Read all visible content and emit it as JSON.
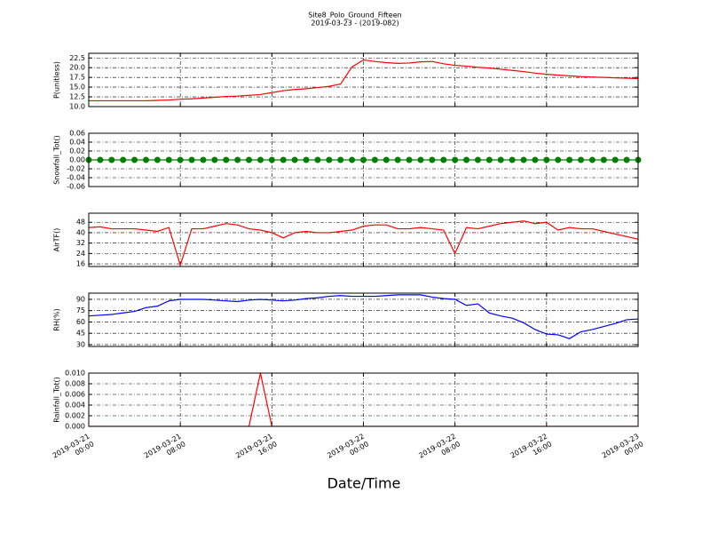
{
  "chart_data": [
    {
      "type": "line",
      "title": "Site8_Polo_Ground_Fifteen",
      "subtitle": "2019-03-23 - (2019-082)",
      "ylabel": "P(unitless)",
      "x": [
        "2019-03-21 00:00",
        "2019-03-21 01:00",
        "2019-03-21 02:00",
        "2019-03-21 03:00",
        "2019-03-21 04:00",
        "2019-03-21 05:00",
        "2019-03-21 06:00",
        "2019-03-21 07:00",
        "2019-03-21 08:00",
        "2019-03-21 09:00",
        "2019-03-21 10:00",
        "2019-03-21 11:00",
        "2019-03-21 12:00",
        "2019-03-21 13:00",
        "2019-03-21 14:00",
        "2019-03-21 15:00",
        "2019-03-21 16:00",
        "2019-03-21 17:00",
        "2019-03-21 18:00",
        "2019-03-21 19:00",
        "2019-03-21 20:00",
        "2019-03-21 21:00",
        "2019-03-21 22:00",
        "2019-03-21 23:00",
        "2019-03-22 00:00",
        "2019-03-22 01:00",
        "2019-03-22 02:00",
        "2019-03-22 03:00",
        "2019-03-22 04:00",
        "2019-03-22 05:00",
        "2019-03-22 06:00",
        "2019-03-22 07:00",
        "2019-03-22 08:00",
        "2019-03-22 09:00",
        "2019-03-22 10:00",
        "2019-03-22 11:00",
        "2019-03-22 12:00",
        "2019-03-22 13:00",
        "2019-03-22 14:00",
        "2019-03-22 15:00",
        "2019-03-22 16:00",
        "2019-03-22 17:00",
        "2019-03-22 18:00",
        "2019-03-22 19:00",
        "2019-03-22 20:00",
        "2019-03-22 21:00",
        "2019-03-22 22:00",
        "2019-03-22 23:00",
        "2019-03-23 00:00"
      ],
      "xlim": [
        "2019-03-21 00:00",
        "2019-03-23 00:00"
      ],
      "xticks": [
        "2019-03-21 00:00",
        "2019-03-21 08:00",
        "2019-03-21 16:00",
        "2019-03-22 00:00",
        "2019-03-22 08:00",
        "2019-03-22 16:00",
        "2019-03-23 00:00"
      ],
      "ylim": [
        10,
        23.7
      ],
      "yticks": [
        {
          "value": 10,
          "label": "10.0"
        },
        12.5,
        {
          "value": 15,
          "label": "15.0"
        },
        17.5,
        {
          "value": 20,
          "label": "20.0"
        },
        22.5
      ],
      "grid": true,
      "series": [
        {
          "color": "#ff0000",
          "values": [
            11.5,
            11.5,
            11.5,
            11.5,
            11.5,
            11.5,
            11.6,
            11.7,
            11.9,
            12.0,
            12.2,
            12.4,
            12.6,
            12.7,
            12.9,
            13.1,
            13.6,
            14.1,
            14.4,
            14.6,
            14.9,
            15.2,
            15.8,
            20.2,
            22.0,
            21.6,
            21.3,
            21.1,
            21.2,
            21.5,
            21.6,
            21.0,
            20.6,
            20.4,
            20.1,
            19.9,
            19.6,
            19.3,
            19.0,
            18.6,
            18.3,
            18.1,
            17.9,
            17.7,
            17.6,
            17.5,
            17.4,
            17.3,
            17.2
          ]
        }
      ]
    },
    {
      "type": "line",
      "ylabel": "Snowfall_Tot()",
      "marker": "o",
      "x": [
        "2019-03-21 00:00",
        "2019-03-21 01:00",
        "2019-03-21 02:00",
        "2019-03-21 03:00",
        "2019-03-21 04:00",
        "2019-03-21 05:00",
        "2019-03-21 06:00",
        "2019-03-21 07:00",
        "2019-03-21 08:00",
        "2019-03-21 09:00",
        "2019-03-21 10:00",
        "2019-03-21 11:00",
        "2019-03-21 12:00",
        "2019-03-21 13:00",
        "2019-03-21 14:00",
        "2019-03-21 15:00",
        "2019-03-21 16:00",
        "2019-03-21 17:00",
        "2019-03-21 18:00",
        "2019-03-21 19:00",
        "2019-03-21 20:00",
        "2019-03-21 21:00",
        "2019-03-21 22:00",
        "2019-03-21 23:00",
        "2019-03-22 00:00",
        "2019-03-22 01:00",
        "2019-03-22 02:00",
        "2019-03-22 03:00",
        "2019-03-22 04:00",
        "2019-03-22 05:00",
        "2019-03-22 06:00",
        "2019-03-22 07:00",
        "2019-03-22 08:00",
        "2019-03-22 09:00",
        "2019-03-22 10:00",
        "2019-03-22 11:00",
        "2019-03-22 12:00",
        "2019-03-22 13:00",
        "2019-03-22 14:00",
        "2019-03-22 15:00",
        "2019-03-22 16:00",
        "2019-03-22 17:00",
        "2019-03-22 18:00",
        "2019-03-22 19:00",
        "2019-03-22 20:00",
        "2019-03-22 21:00",
        "2019-03-22 22:00",
        "2019-03-22 23:00",
        "2019-03-23 00:00"
      ],
      "xlim": [
        "2019-03-21 00:00",
        "2019-03-23 00:00"
      ],
      "xticks": [
        "2019-03-21 00:00",
        "2019-03-21 08:00",
        "2019-03-21 16:00",
        "2019-03-22 00:00",
        "2019-03-22 08:00",
        "2019-03-22 16:00",
        "2019-03-23 00:00"
      ],
      "ylim": [
        -0.06,
        0.06
      ],
      "yticks": [
        -0.06,
        -0.04,
        -0.02,
        {
          "value": 0,
          "label": "0.00"
        },
        0.02,
        0.04,
        0.06
      ],
      "grid": true,
      "series": [
        {
          "color": "#008000",
          "values": [
            0,
            0,
            0,
            0,
            0,
            0,
            0,
            0,
            0,
            0,
            0,
            0,
            0,
            0,
            0,
            0,
            0,
            0,
            0,
            0,
            0,
            0,
            0,
            0,
            0,
            0,
            0,
            0,
            0,
            0,
            0,
            0,
            0,
            0,
            0,
            0,
            0,
            0,
            0,
            0,
            0,
            0,
            0,
            0,
            0,
            0,
            0,
            0,
            0
          ]
        }
      ]
    },
    {
      "type": "line",
      "ylabel": "AirTF()",
      "x": [
        "2019-03-21 00:00",
        "2019-03-21 01:00",
        "2019-03-21 02:00",
        "2019-03-21 03:00",
        "2019-03-21 04:00",
        "2019-03-21 05:00",
        "2019-03-21 06:00",
        "2019-03-21 07:00",
        "2019-03-21 08:00",
        "2019-03-21 09:00",
        "2019-03-21 10:00",
        "2019-03-21 11:00",
        "2019-03-21 12:00",
        "2019-03-21 13:00",
        "2019-03-21 14:00",
        "2019-03-21 15:00",
        "2019-03-21 16:00",
        "2019-03-21 17:00",
        "2019-03-21 18:00",
        "2019-03-21 19:00",
        "2019-03-21 20:00",
        "2019-03-21 21:00",
        "2019-03-21 22:00",
        "2019-03-21 23:00",
        "2019-03-22 00:00",
        "2019-03-22 01:00",
        "2019-03-22 02:00",
        "2019-03-22 03:00",
        "2019-03-22 04:00",
        "2019-03-22 05:00",
        "2019-03-22 06:00",
        "2019-03-22 07:00",
        "2019-03-22 08:00",
        "2019-03-22 09:00",
        "2019-03-22 10:00",
        "2019-03-22 11:00",
        "2019-03-22 12:00",
        "2019-03-22 13:00",
        "2019-03-22 14:00",
        "2019-03-22 15:00",
        "2019-03-22 16:00",
        "2019-03-22 17:00",
        "2019-03-22 18:00",
        "2019-03-22 19:00",
        "2019-03-22 20:00",
        "2019-03-22 21:00",
        "2019-03-22 22:00",
        "2019-03-22 23:00",
        "2019-03-23 00:00"
      ],
      "xlim": [
        "2019-03-21 00:00",
        "2019-03-23 00:00"
      ],
      "xticks": [
        "2019-03-21 00:00",
        "2019-03-21 08:00",
        "2019-03-21 16:00",
        "2019-03-22 00:00",
        "2019-03-22 08:00",
        "2019-03-22 16:00",
        "2019-03-23 00:00"
      ],
      "ylim": [
        14,
        55
      ],
      "yticks": [
        16,
        24,
        32,
        40,
        48
      ],
      "grid": true,
      "series": [
        {
          "color": "#ff0000",
          "values": [
            44,
            44.5,
            43,
            43,
            43,
            42,
            41,
            44,
            15,
            43,
            43,
            45,
            47,
            46,
            43,
            42,
            40,
            36,
            40,
            41,
            40,
            40,
            41,
            42,
            45,
            46,
            46,
            43,
            43,
            44,
            43,
            42,
            24,
            44,
            43,
            45,
            47,
            48,
            49,
            47,
            48,
            42,
            44,
            43,
            43,
            41,
            39,
            37,
            35
          ]
        }
      ]
    },
    {
      "type": "line",
      "ylabel": "RH(%)",
      "x": [
        "2019-03-21 00:00",
        "2019-03-21 01:00",
        "2019-03-21 02:00",
        "2019-03-21 03:00",
        "2019-03-21 04:00",
        "2019-03-21 05:00",
        "2019-03-21 06:00",
        "2019-03-21 07:00",
        "2019-03-21 08:00",
        "2019-03-21 09:00",
        "2019-03-21 10:00",
        "2019-03-21 11:00",
        "2019-03-21 12:00",
        "2019-03-21 13:00",
        "2019-03-21 14:00",
        "2019-03-21 15:00",
        "2019-03-21 16:00",
        "2019-03-21 17:00",
        "2019-03-21 18:00",
        "2019-03-21 19:00",
        "2019-03-21 20:00",
        "2019-03-21 21:00",
        "2019-03-21 22:00",
        "2019-03-21 23:00",
        "2019-03-22 00:00",
        "2019-03-22 01:00",
        "2019-03-22 02:00",
        "2019-03-22 03:00",
        "2019-03-22 04:00",
        "2019-03-22 05:00",
        "2019-03-22 06:00",
        "2019-03-22 07:00",
        "2019-03-22 08:00",
        "2019-03-22 09:00",
        "2019-03-22 10:00",
        "2019-03-22 11:00",
        "2019-03-22 12:00",
        "2019-03-22 13:00",
        "2019-03-22 14:00",
        "2019-03-22 15:00",
        "2019-03-22 16:00",
        "2019-03-22 17:00",
        "2019-03-22 18:00",
        "2019-03-22 19:00",
        "2019-03-22 20:00",
        "2019-03-22 21:00",
        "2019-03-22 22:00",
        "2019-03-22 23:00",
        "2019-03-23 00:00"
      ],
      "xlim": [
        "2019-03-21 00:00",
        "2019-03-23 00:00"
      ],
      "xticks": [
        "2019-03-21 00:00",
        "2019-03-21 08:00",
        "2019-03-21 16:00",
        "2019-03-22 00:00",
        "2019-03-22 08:00",
        "2019-03-22 16:00",
        "2019-03-23 00:00"
      ],
      "ylim": [
        27.6,
        98.2
      ],
      "yticks": [
        30,
        45,
        60,
        75,
        90
      ],
      "grid": true,
      "series": [
        {
          "color": "#0000ff",
          "values": [
            68,
            69,
            70,
            72,
            74,
            79,
            81,
            88,
            90,
            90,
            90,
            89,
            88,
            87,
            89,
            90,
            89,
            88,
            89,
            91,
            92,
            94,
            95,
            94,
            94,
            94,
            95,
            96,
            96,
            96,
            93,
            91,
            90,
            82,
            84,
            72,
            68,
            65,
            59,
            50,
            44,
            43,
            38,
            47,
            50,
            54,
            58,
            63,
            64
          ]
        }
      ]
    },
    {
      "type": "line",
      "ylabel": "Rainfall_Tot()",
      "xlabel": "Date/Time",
      "x": [
        "2019-03-21 00:00",
        "2019-03-21 01:00",
        "2019-03-21 02:00",
        "2019-03-21 03:00",
        "2019-03-21 04:00",
        "2019-03-21 05:00",
        "2019-03-21 06:00",
        "2019-03-21 07:00",
        "2019-03-21 08:00",
        "2019-03-21 09:00",
        "2019-03-21 10:00",
        "2019-03-21 11:00",
        "2019-03-21 12:00",
        "2019-03-21 13:00",
        "2019-03-21 14:00",
        "2019-03-21 15:00",
        "2019-03-21 16:00",
        "2019-03-21 17:00",
        "2019-03-21 18:00",
        "2019-03-21 19:00",
        "2019-03-21 20:00",
        "2019-03-21 21:00",
        "2019-03-21 22:00",
        "2019-03-21 23:00",
        "2019-03-22 00:00",
        "2019-03-22 01:00",
        "2019-03-22 02:00",
        "2019-03-22 03:00",
        "2019-03-22 04:00",
        "2019-03-22 05:00",
        "2019-03-22 06:00",
        "2019-03-22 07:00",
        "2019-03-22 08:00",
        "2019-03-22 09:00",
        "2019-03-22 10:00",
        "2019-03-22 11:00",
        "2019-03-22 12:00",
        "2019-03-22 13:00",
        "2019-03-22 14:00",
        "2019-03-22 15:00",
        "2019-03-22 16:00",
        "2019-03-22 17:00",
        "2019-03-22 18:00",
        "2019-03-22 19:00",
        "2019-03-22 20:00",
        "2019-03-22 21:00",
        "2019-03-22 22:00",
        "2019-03-22 23:00",
        "2019-03-23 00:00"
      ],
      "xlim": [
        "2019-03-21 00:00",
        "2019-03-23 00:00"
      ],
      "xticks": [
        "2019-03-21 00:00",
        "2019-03-21 08:00",
        "2019-03-21 16:00",
        "2019-03-22 00:00",
        "2019-03-22 08:00",
        "2019-03-22 16:00",
        "2019-03-23 00:00"
      ],
      "ylim": [
        0,
        0.01
      ],
      "yticks": [
        {
          "value": 0,
          "label": "0.000"
        },
        0.002,
        0.004,
        0.006,
        0.008,
        {
          "value": 0.01,
          "label": "0.010"
        }
      ],
      "grid": true,
      "series": [
        {
          "color": "#ff0000",
          "values": [
            0,
            0,
            0,
            0,
            0,
            0,
            0,
            0,
            0,
            0,
            0,
            0,
            0,
            0,
            0,
            0.01,
            0,
            0,
            0,
            0,
            0,
            0,
            0,
            0,
            0,
            0,
            0,
            0,
            0,
            0,
            0,
            0,
            0,
            0,
            0,
            0,
            0,
            0,
            0,
            0,
            0,
            0,
            0,
            0,
            0,
            0,
            0,
            0,
            0
          ]
        }
      ]
    }
  ]
}
